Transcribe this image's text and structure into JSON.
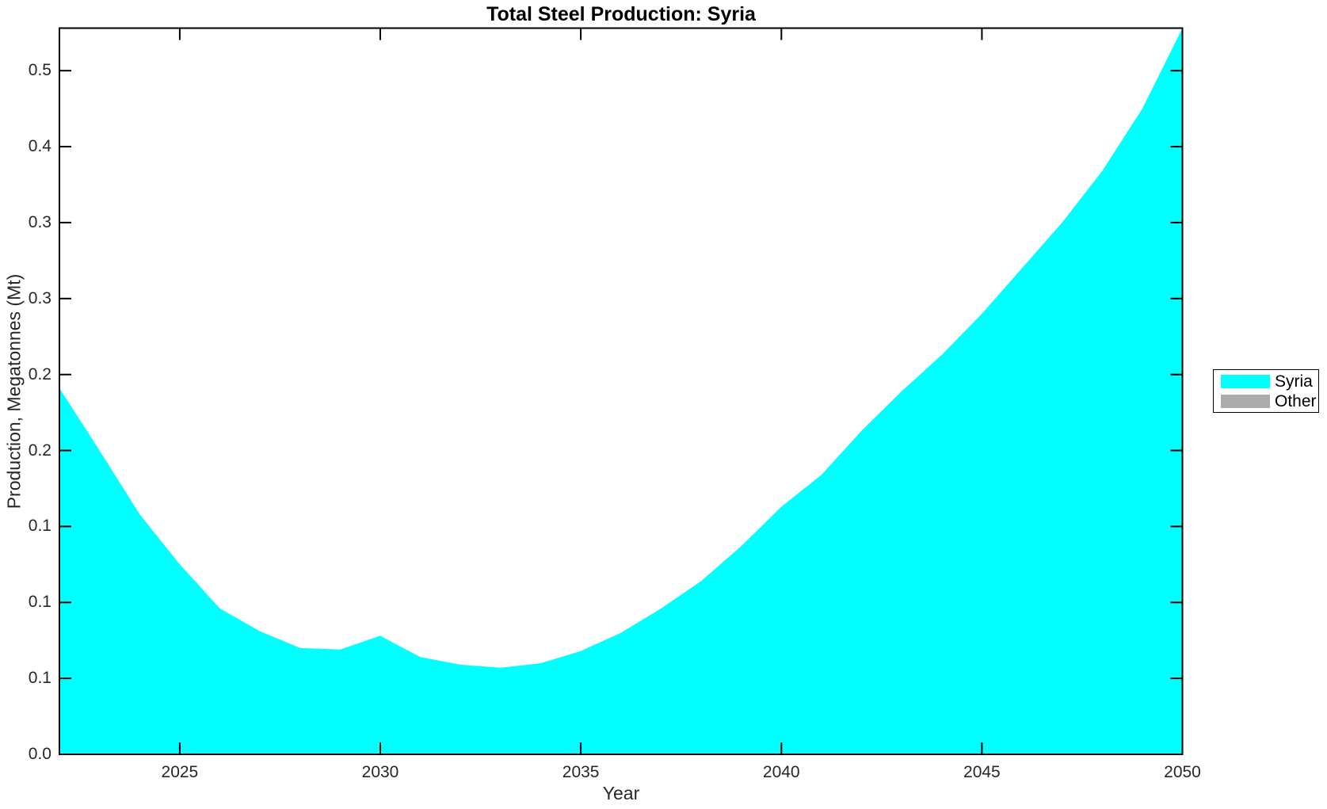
{
  "chart_data": {
    "type": "area",
    "title": "Total Steel Production: Syria",
    "xlabel": "Year",
    "ylabel": "Production, Megatonnes (Mt)",
    "xlim": [
      2022,
      2050
    ],
    "ylim": [
      0,
      0.478
    ],
    "grid": false,
    "background_color": "#ffffff",
    "axis_color": "#000000",
    "x_ticks": [
      {
        "value": 2025,
        "label": "2025"
      },
      {
        "value": 2030,
        "label": "2030"
      },
      {
        "value": 2035,
        "label": "2035"
      },
      {
        "value": 2040,
        "label": "2040"
      },
      {
        "value": 2045,
        "label": "2045"
      },
      {
        "value": 2050,
        "label": "2050"
      }
    ],
    "y_ticks": [
      {
        "value": 0.0,
        "label": "0.0"
      },
      {
        "value": 0.05,
        "label": "0.1"
      },
      {
        "value": 0.1,
        "label": "0.1"
      },
      {
        "value": 0.15,
        "label": "0.1"
      },
      {
        "value": 0.2,
        "label": "0.2"
      },
      {
        "value": 0.25,
        "label": "0.2"
      },
      {
        "value": 0.3,
        "label": "0.3"
      },
      {
        "value": 0.35,
        "label": "0.3"
      },
      {
        "value": 0.4,
        "label": "0.4"
      },
      {
        "value": 0.45,
        "label": "0.5"
      }
    ],
    "x": [
      2022,
      2023,
      2024,
      2025,
      2026,
      2027,
      2028,
      2029,
      2030,
      2031,
      2032,
      2033,
      2034,
      2035,
      2036,
      2037,
      2038,
      2039,
      2040,
      2041,
      2042,
      2043,
      2044,
      2045,
      2046,
      2047,
      2048,
      2049,
      2050
    ],
    "series": [
      {
        "name": "Syria",
        "color": "#00ffff",
        "values": [
          0.241,
          0.2,
          0.158,
          0.125,
          0.096,
          0.081,
          0.07,
          0.069,
          0.078,
          0.064,
          0.059,
          0.057,
          0.06,
          0.068,
          0.08,
          0.096,
          0.114,
          0.137,
          0.163,
          0.184,
          0.213,
          0.239,
          0.263,
          0.29,
          0.32,
          0.35,
          0.384,
          0.425,
          0.478
        ]
      },
      {
        "name": "Other",
        "color": "#ababab",
        "values": [
          0,
          0,
          0,
          0,
          0,
          0,
          0,
          0,
          0,
          0,
          0,
          0,
          0,
          0,
          0,
          0,
          0,
          0,
          0,
          0,
          0,
          0,
          0,
          0,
          0,
          0,
          0,
          0,
          0
        ]
      }
    ],
    "legend": {
      "position": "outside-right",
      "entries": [
        {
          "label": "Syria",
          "color": "#00ffff"
        },
        {
          "label": "Other",
          "color": "#ababab"
        }
      ]
    }
  }
}
